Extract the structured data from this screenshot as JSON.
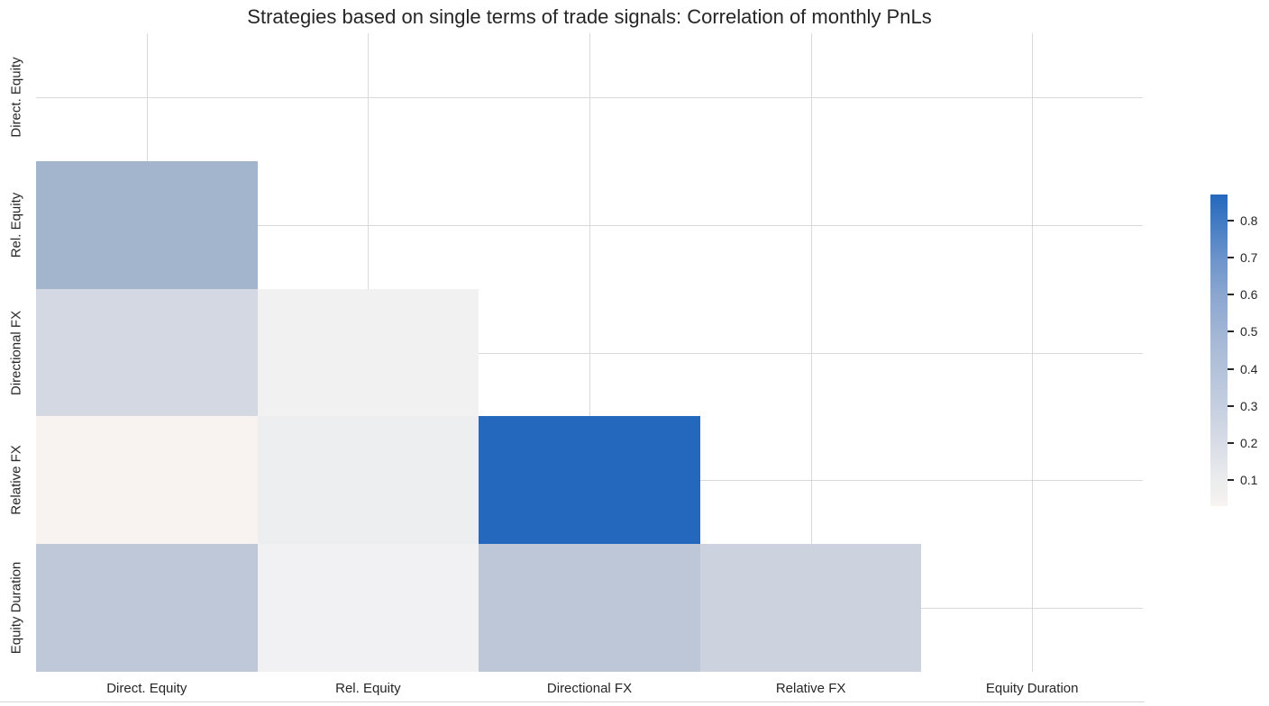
{
  "chart_data": {
    "type": "heatmap",
    "title": "Strategies based on single terms of trade signals: Correlation of monthly PnLs",
    "x_categories": [
      "Direct. Equity",
      "Rel. Equity",
      "Directional FX",
      "Relative FX",
      "Equity Duration"
    ],
    "y_categories": [
      "Direct. Equity",
      "Rel. Equity",
      "Directional FX",
      "Relative FX",
      "Equity Duration"
    ],
    "mask": "diagonal and upper triangle hidden (white)",
    "grid": true,
    "legend_position": "colorbar-right",
    "cells": [
      {
        "row": 1,
        "col": 0,
        "row_label": "Rel. Equity",
        "col_label": "Direct. Equity",
        "value": 0.43,
        "color": "#a3b5cd"
      },
      {
        "row": 2,
        "col": 0,
        "row_label": "Directional FX",
        "col_label": "Direct. Equity",
        "value": 0.22,
        "color": "#d4d8e2"
      },
      {
        "row": 2,
        "col": 1,
        "row_label": "Directional FX",
        "col_label": "Rel. Equity",
        "value": 0.06,
        "color": "#f2f1f1"
      },
      {
        "row": 3,
        "col": 0,
        "row_label": "Relative FX",
        "col_label": "Direct. Equity",
        "value": 0.03,
        "color": "#f8f3f0"
      },
      {
        "row": 3,
        "col": 1,
        "row_label": "Relative FX",
        "col_label": "Rel. Equity",
        "value": 0.1,
        "color": "#edeef0"
      },
      {
        "row": 3,
        "col": 2,
        "row_label": "Relative FX",
        "col_label": "Directional FX",
        "value": 0.87,
        "color": "#2468bd"
      },
      {
        "row": 4,
        "col": 0,
        "row_label": "Equity Duration",
        "col_label": "Direct. Equity",
        "value": 0.33,
        "color": "#bec8d9"
      },
      {
        "row": 4,
        "col": 1,
        "row_label": "Equity Duration",
        "col_label": "Rel. Equity",
        "value": 0.07,
        "color": "#f1f0f2"
      },
      {
        "row": 4,
        "col": 2,
        "row_label": "Equity Duration",
        "col_label": "Directional FX",
        "value": 0.34,
        "color": "#bdc7d8"
      },
      {
        "row": 4,
        "col": 3,
        "row_label": "Equity Duration",
        "col_label": "Relative FX",
        "value": 0.27,
        "color": "#ccd2de"
      }
    ],
    "colorbar": {
      "vmin": 0.03,
      "vmax": 0.87,
      "ticks": [
        "0.8",
        "0.7",
        "0.6",
        "0.5",
        "0.4",
        "0.3",
        "0.2",
        "0.1"
      ],
      "gradient_stops": [
        {
          "v": 0.87,
          "color": "#2468bd"
        },
        {
          "v": 0.8,
          "color": "#4079c3"
        },
        {
          "v": 0.7,
          "color": "#6b93cb"
        },
        {
          "v": 0.6,
          "color": "#8aa6d0"
        },
        {
          "v": 0.5,
          "color": "#a1b5d5"
        },
        {
          "v": 0.4,
          "color": "#b3c2da"
        },
        {
          "v": 0.3,
          "color": "#c5cfe0"
        },
        {
          "v": 0.2,
          "color": "#d8dce6"
        },
        {
          "v": 0.1,
          "color": "#eaeced"
        },
        {
          "v": 0.03,
          "color": "#f7f3f0"
        }
      ]
    },
    "colors": {
      "text": "#262626",
      "gridline": "#d9d9d9",
      "background": "#ffffff"
    }
  }
}
